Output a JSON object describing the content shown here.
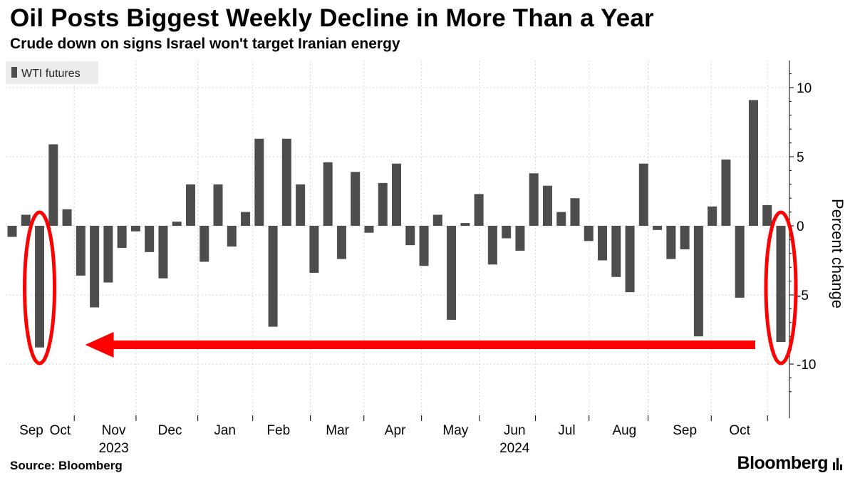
{
  "header": {
    "title": "Oil Posts Biggest Weekly Decline in More Than a Year",
    "subtitle": "Crude down on signs Israel won't target Iranian energy"
  },
  "footer": {
    "source": "Source: Bloomberg",
    "brand": "Bloomberg"
  },
  "colors": {
    "bar": "#4d4d4d",
    "grid": "#d4d4d4",
    "annotation": "#ff0000",
    "legend_bg": "#ececec"
  },
  "chart_data": {
    "type": "bar",
    "title": "Oil Posts Biggest Weekly Decline in More Than a Year",
    "subtitle": "Crude down on signs Israel won't target Iranian energy",
    "ylabel": "Percent change",
    "xlabel": "",
    "ylim": [
      -14,
      12
    ],
    "yticks": [
      10,
      5,
      0,
      -5,
      -10
    ],
    "grid": true,
    "legend_position": "top-left",
    "series": [
      {
        "name": "WTI futures",
        "values": [
          -0.8,
          0.8,
          -8.8,
          5.9,
          1.2,
          -3.6,
          -5.9,
          -4.1,
          -1.6,
          -0.4,
          -1.9,
          -3.8,
          0.3,
          3.0,
          -2.6,
          3.0,
          -1.5,
          1.0,
          6.3,
          -7.3,
          6.3,
          3.0,
          -3.4,
          4.6,
          -2.4,
          3.9,
          -0.5,
          3.1,
          4.5,
          -1.4,
          -2.9,
          0.8,
          -6.8,
          0.2,
          2.3,
          -2.8,
          -0.9,
          -1.8,
          3.8,
          2.9,
          1.0,
          2.0,
          -1.1,
          -2.5,
          -3.7,
          -4.8,
          4.5,
          -0.3,
          -2.4,
          -1.7,
          -8.0,
          1.4,
          4.8,
          -5.2,
          9.1,
          1.5,
          -8.4
        ]
      }
    ],
    "x_month_labels": [
      "Sep",
      "Oct",
      "Nov",
      "Dec",
      "Jan",
      "Feb",
      "Mar",
      "Apr",
      "May",
      "Jun",
      "Jul",
      "Aug",
      "Sep",
      "Oct"
    ],
    "x_month_positions": [
      1.4,
      3.5,
      7.4,
      11.5,
      15.5,
      19.4,
      23.7,
      27.9,
      32.3,
      36.6,
      40.4,
      44.6,
      49.0,
      53.0
    ],
    "x_year_labels": [
      {
        "label": "2023",
        "position": 7.4
      },
      {
        "label": "2024",
        "position": 36.6
      }
    ],
    "x_tick_positions": [
      5.0,
      9.5,
      14.0,
      18.0,
      22.2,
      26.1,
      30.3,
      34.5,
      38.6,
      42.5,
      46.8,
      51.4,
      55.5
    ],
    "annotations": [
      {
        "type": "ellipse",
        "target_index": 2,
        "label": ""
      },
      {
        "type": "ellipse",
        "target_index": 56,
        "label": ""
      },
      {
        "type": "arrow",
        "from_index": 56,
        "to_index": 2,
        "label": ""
      }
    ]
  }
}
